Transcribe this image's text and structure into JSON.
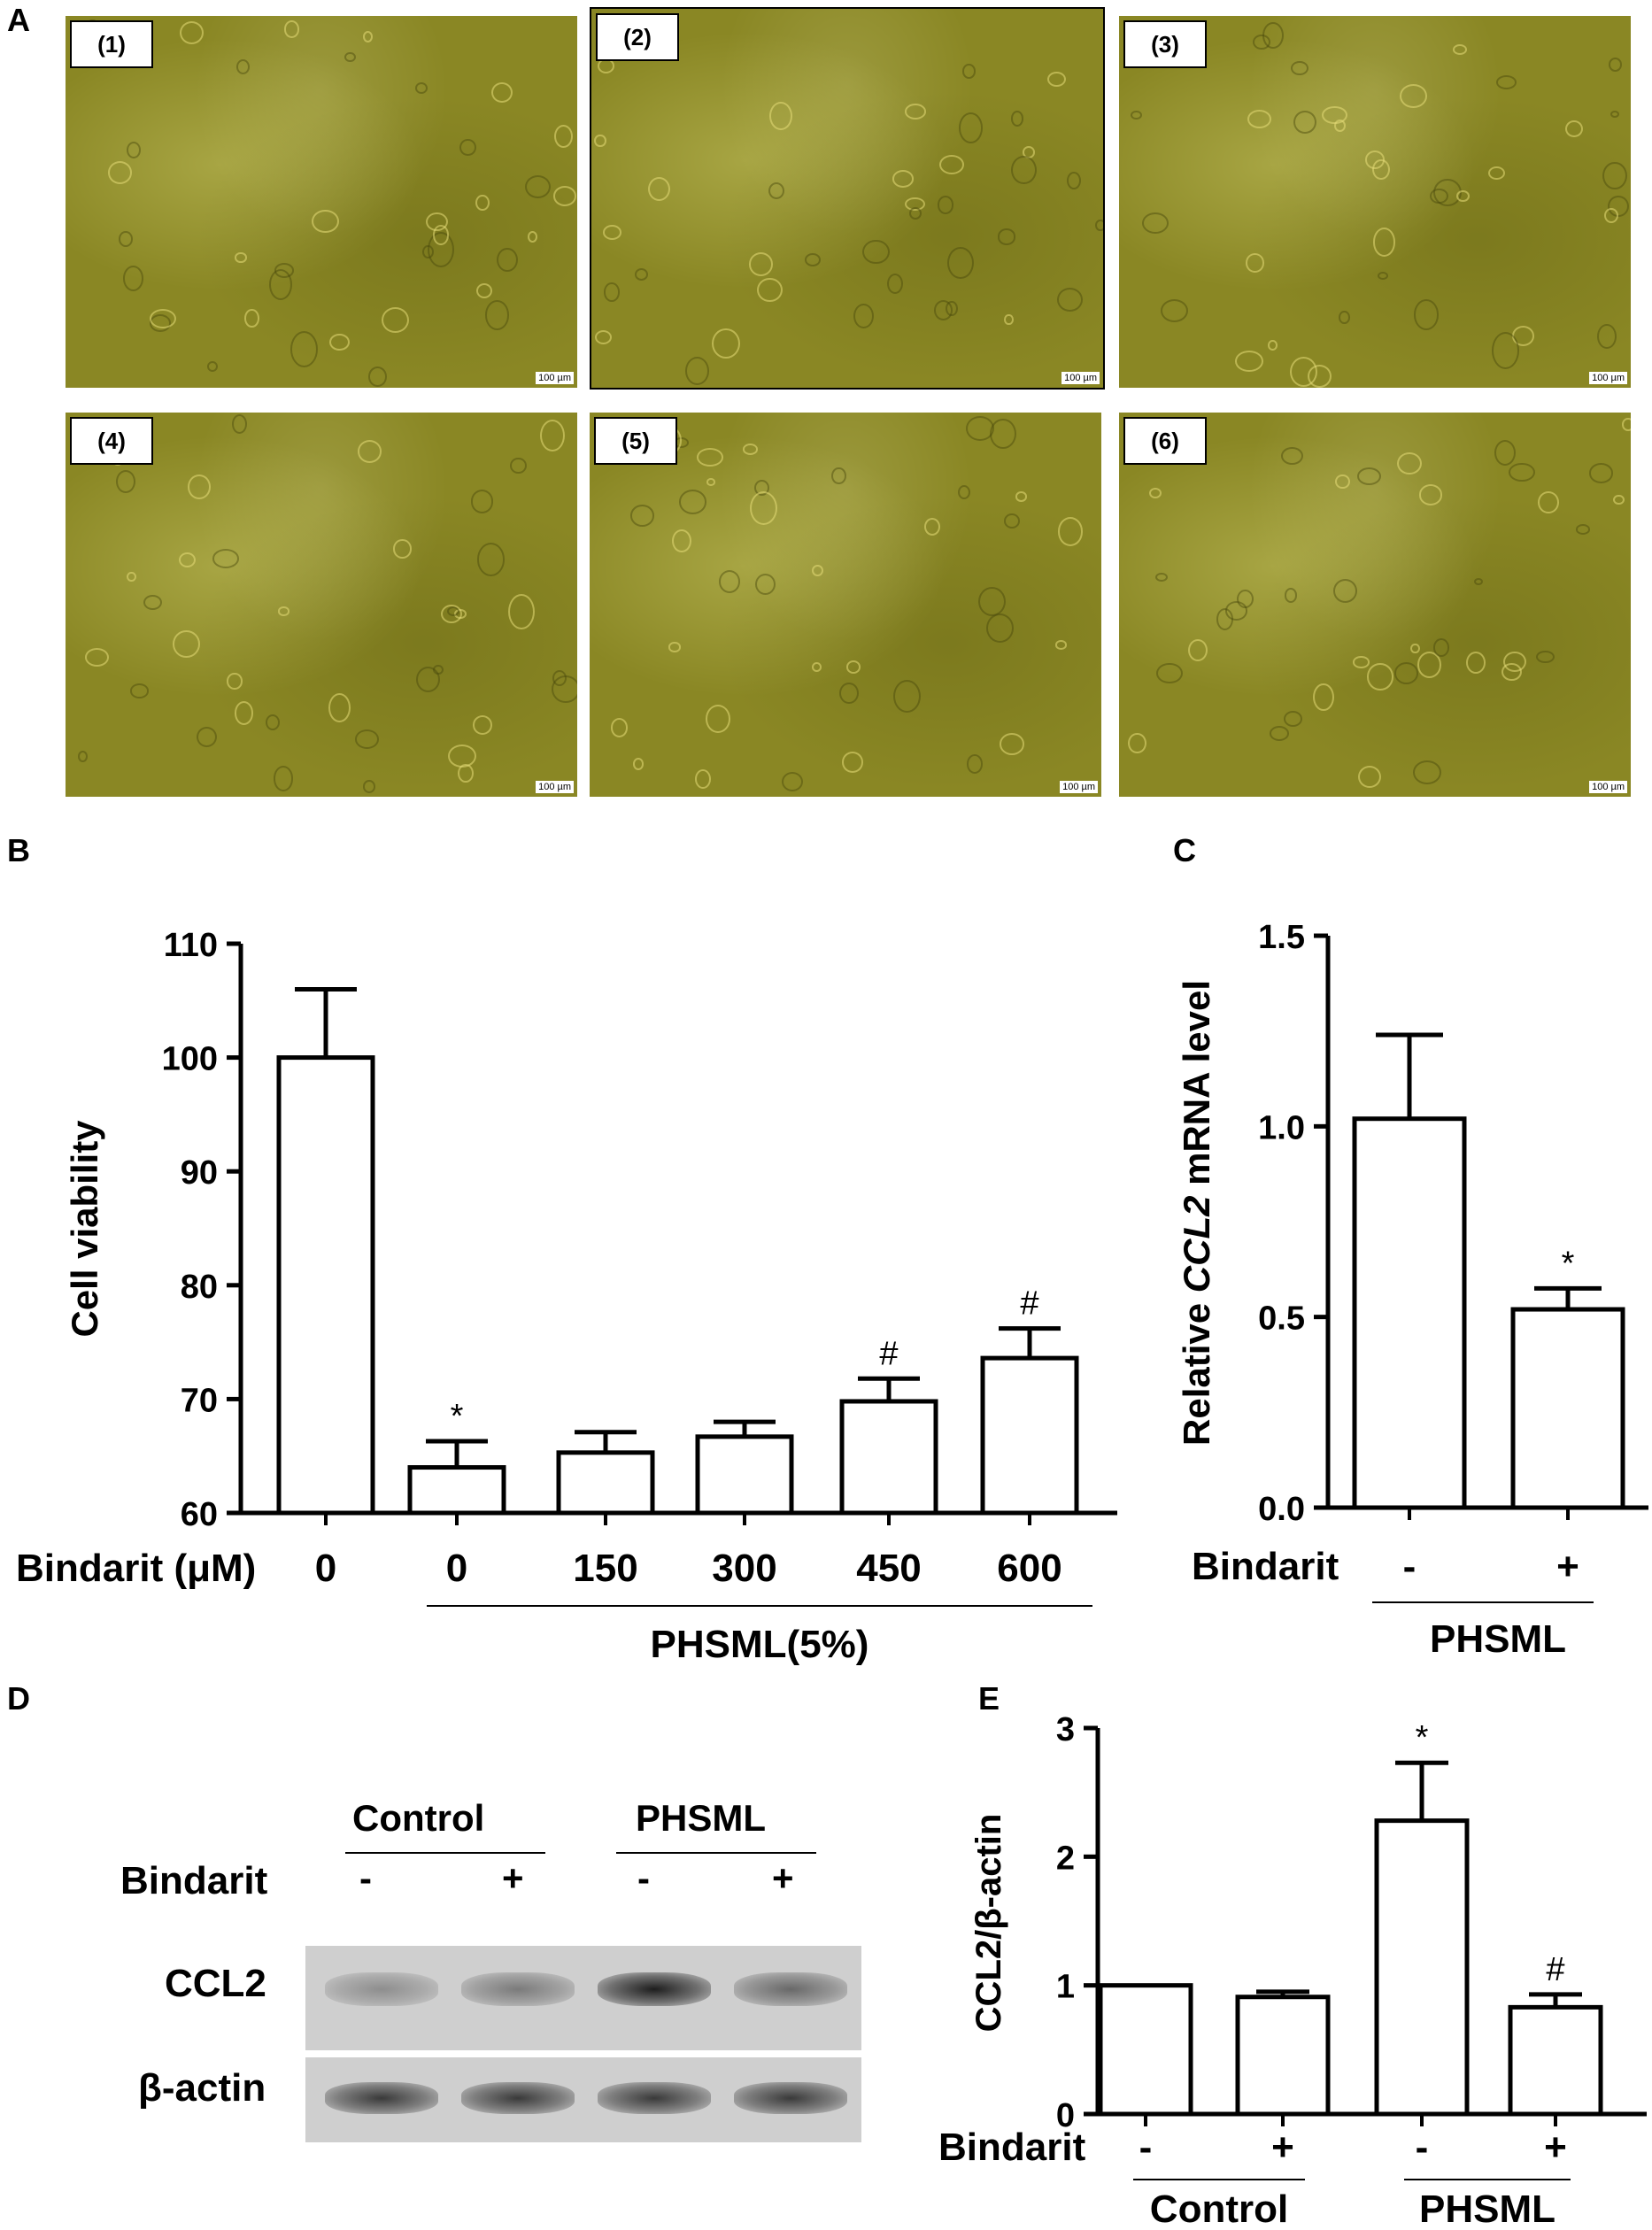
{
  "panel_letters": {
    "a": "A",
    "b": "B",
    "c": "C",
    "d": "D",
    "e": "E"
  },
  "micrographs": [
    {
      "label": "(1)",
      "scale": "100 µm"
    },
    {
      "label": "(2)",
      "scale": "100 µm"
    },
    {
      "label": "(3)",
      "scale": "100 µm"
    },
    {
      "label": "(4)",
      "scale": "100 µm"
    },
    {
      "label": "(5)",
      "scale": "100 µm"
    },
    {
      "label": "(6)",
      "scale": "100 µm"
    }
  ],
  "chart_data": [
    {
      "panel": "B",
      "type": "bar",
      "ylabel": "Cell viability",
      "ylim": [
        60,
        110
      ],
      "yticks": [
        60,
        70,
        80,
        90,
        100,
        110
      ],
      "row_label": "Bindarit (μM)",
      "categories": [
        "0",
        "0",
        "150",
        "300",
        "450",
        "600"
      ],
      "values": [
        100,
        64,
        65.3,
        66.7,
        69.8,
        73.6
      ],
      "errors": [
        6,
        2.3,
        1.8,
        1.3,
        2,
        2.6
      ],
      "markers": [
        "",
        "*",
        "",
        "",
        "#",
        "#"
      ],
      "group_label": "PHSML(5%)"
    },
    {
      "panel": "C",
      "type": "bar",
      "ylabel_parts": [
        "Relative ",
        "CCL2",
        " mRNA level"
      ],
      "ylim": [
        0,
        1.5
      ],
      "yticks": [
        "0.0",
        "0.5",
        "1.0",
        "1.5"
      ],
      "ytick_values": [
        0,
        0.5,
        1,
        1.5
      ],
      "row_label": "Bindarit",
      "categories": [
        "-",
        "+"
      ],
      "values": [
        1.02,
        0.52
      ],
      "errors": [
        0.22,
        0.055
      ],
      "markers": [
        "",
        "*"
      ],
      "group_label": "PHSML"
    },
    {
      "panel": "E",
      "type": "bar",
      "ylabel": "CCL2/β-actin",
      "ylim": [
        0,
        3
      ],
      "yticks": [
        0,
        1,
        2,
        3
      ],
      "row_label": "Bindarit",
      "categories": [
        "-",
        "+",
        "-",
        "+"
      ],
      "values": [
        1,
        0.91,
        2.28,
        0.83
      ],
      "errors": [
        0,
        0.04,
        0.45,
        0.1
      ],
      "markers": [
        "",
        "",
        "*",
        "#"
      ],
      "groups": [
        "Control",
        "PHSML"
      ]
    }
  ],
  "blot": {
    "groups": [
      "Control",
      "PHSML"
    ],
    "row_label": "Bindarit",
    "signs": [
      "-",
      "+",
      "-",
      "+"
    ],
    "bands": [
      "CCL2",
      "β-actin"
    ],
    "ccl2_intensity": [
      0.35,
      0.45,
      0.95,
      0.55
    ],
    "actin_intensity": [
      0.8,
      0.8,
      0.8,
      0.8
    ]
  }
}
